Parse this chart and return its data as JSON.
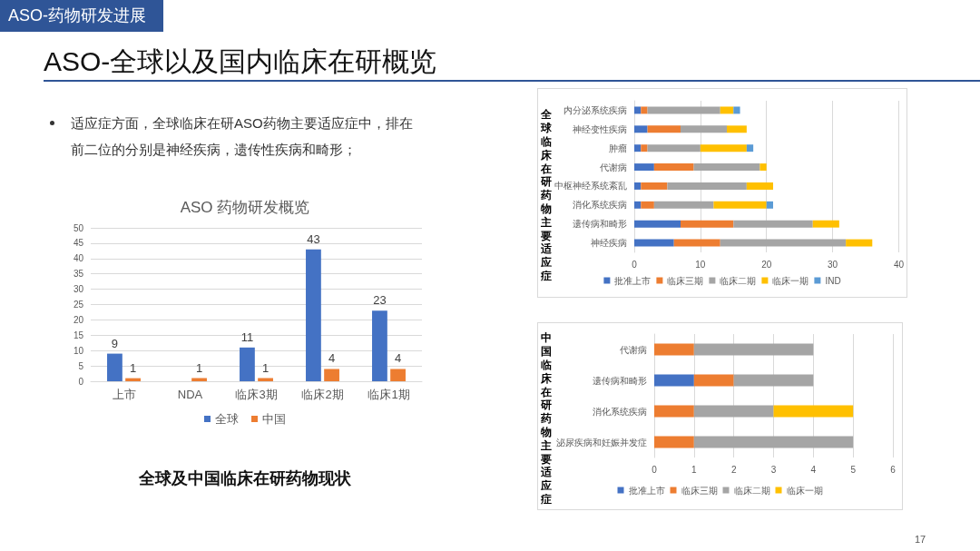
{
  "chart_data": [
    {
      "type": "other",
      "title": "ASO-全球以及国内临床在研概览",
      "subtitle": "ASO-药物研发进展",
      "annotations": [
        "适应症方面，全球临床在研ASO药物主要适应症中，排在前二位的分别是神经疾病，遗传性疾病和畸形；",
        "17"
      ]
    },
    {
      "type": "bar",
      "title": "ASO 药物研发概览",
      "categories": [
        "上市",
        "NDA",
        "临床3期",
        "临床2期",
        "临床1期"
      ],
      "series": [
        {
          "name": "全球",
          "color": "#4472c4",
          "values": [
            9,
            null,
            11,
            43,
            23
          ]
        },
        {
          "name": "中国",
          "color": "#ed7d31",
          "values": [
            1,
            1,
            1,
            4,
            4
          ]
        }
      ],
      "ylim": [
        0,
        50
      ],
      "yticks": [
        0,
        5,
        10,
        15,
        20,
        25,
        30,
        35,
        40,
        45,
        50
      ],
      "grid": "y",
      "legend": "bottom",
      "data_labels": true,
      "annotations": [
        "全球及中国临床在研药物现状"
      ]
    },
    {
      "type": "bar",
      "orientation": "horizontal",
      "stacked": true,
      "ylabel": "全球临床在研药物主要适应症",
      "categories": [
        "内分泌系统疾病",
        "神经变性疾病",
        "肿瘤",
        "代谢病",
        "中枢神经系统紊乱",
        "消化系统疾病",
        "遗传病和畸形",
        "神经疾病"
      ],
      "series": [
        {
          "name": "批准上市",
          "color": "#4472c4",
          "values": [
            1,
            2,
            1,
            3,
            1,
            1,
            7,
            6
          ]
        },
        {
          "name": "临床三期",
          "color": "#ed7d31",
          "values": [
            1,
            5,
            1,
            6,
            4,
            2,
            8,
            7
          ]
        },
        {
          "name": "临床二期",
          "color": "#a5a5a5",
          "values": [
            11,
            7,
            8,
            10,
            12,
            9,
            12,
            19
          ]
        },
        {
          "name": "临床一期",
          "color": "#ffc000",
          "values": [
            2,
            3,
            7,
            1,
            4,
            8,
            4,
            4
          ]
        },
        {
          "name": "IND",
          "color": "#5b9bd5",
          "values": [
            1,
            0,
            1,
            0,
            0,
            1,
            0,
            0
          ]
        }
      ],
      "xlim": [
        0,
        40
      ],
      "xticks": [
        0,
        10,
        20,
        30,
        40
      ],
      "grid": "x",
      "legend": "bottom"
    },
    {
      "type": "bar",
      "orientation": "horizontal",
      "stacked": true,
      "ylabel": "中国临床在研药物主要适应症",
      "categories": [
        "代谢病",
        "遗传病和畸形",
        "消化系统疾病",
        "泌尿疾病和妊娠并发症"
      ],
      "series": [
        {
          "name": "批准上市",
          "color": "#4472c4",
          "values": [
            0,
            1,
            0,
            0
          ]
        },
        {
          "name": "临床三期",
          "color": "#ed7d31",
          "values": [
            1,
            1,
            1,
            1
          ]
        },
        {
          "name": "临床二期",
          "color": "#a5a5a5",
          "values": [
            3,
            2,
            2,
            4
          ]
        },
        {
          "name": "临床一期",
          "color": "#ffc000",
          "values": [
            0,
            0,
            2,
            0
          ]
        }
      ],
      "xlim": [
        0,
        6
      ],
      "xticks": [
        0,
        1,
        2,
        3,
        4,
        5,
        6
      ],
      "grid": "x",
      "legend": "bottom"
    }
  ]
}
